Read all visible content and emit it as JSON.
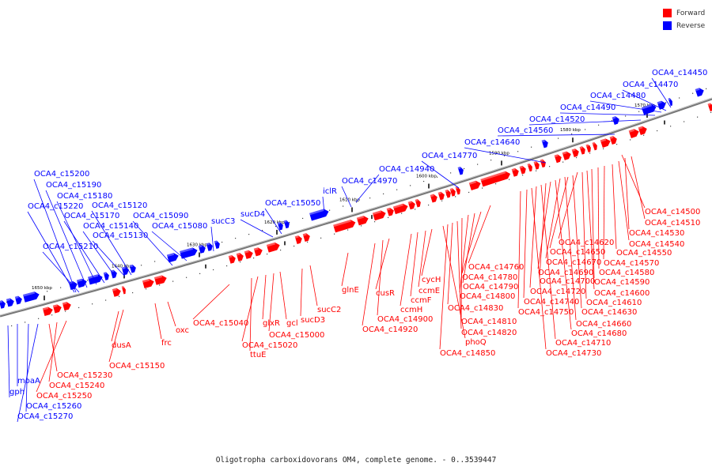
{
  "legend": [
    {
      "label": "Forward",
      "color": "#ff0000"
    },
    {
      "label": "Reverse",
      "color": "#0000ff"
    }
  ],
  "caption": "Oligotropha carboxidovorans OM4, complete genome. - 0..3539447",
  "colors": {
    "forward": "#ff0000",
    "reverse": "#0000ff",
    "axis": "#777777"
  },
  "scale_labels": [
    "1650 kbp",
    "1640 kbp",
    "1630 kbp",
    "1620 kbp",
    "1610 kbp",
    "1600 kbp",
    "1590 kbp",
    "1580 kbp",
    "1570 kbp"
  ],
  "reverse_labels": [
    "OCA4_c14450",
    "OCA4_c14470",
    "OCA4_c14480",
    "OCA4_c14490",
    "OCA4_c14520",
    "OCA4_c14560",
    "OCA4_c14640",
    "OCA4_c14770",
    "OCA4_c14940",
    "OCA4_c14970",
    "iclR",
    "sucD4",
    "OCA4_c15050",
    "sucC3",
    "OCA4_c15080",
    "OCA4_c15090",
    "OCA4_c15120",
    "OCA4_c15130",
    "OCA4_c15140",
    "OCA4_c15170",
    "OCA4_c15180",
    "OCA4_c15190",
    "OCA4_c15200",
    "OCA4_c15210",
    "OCA4_c15220",
    "gph",
    "moaA",
    "OCA4_c15260",
    "OCA4_c15270"
  ],
  "forward_labels": [
    "OCA4_c14500",
    "OCA4_c14510",
    "OCA4_c14530",
    "OCA4_c14540",
    "OCA4_c14550",
    "OCA4_c14570",
    "OCA4_c14580",
    "OCA4_c14590",
    "OCA4_c14600",
    "OCA4_c14610",
    "OCA4_c14620",
    "OCA4_c14630",
    "OCA4_c14650",
    "OCA4_c14660",
    "OCA4_c14670",
    "OCA4_c14680",
    "OCA4_c14690",
    "OCA4_c14700",
    "OCA4_c14710",
    "OCA4_c14720",
    "OCA4_c14730",
    "OCA4_c14740",
    "OCA4_c14750",
    "OCA4_c14760",
    "OCA4_c14780",
    "OCA4_c14790",
    "OCA4_c14800",
    "OCA4_c14810",
    "OCA4_c14820",
    "OCA4_c14830",
    "OCA4_c14850",
    "phoQ",
    "cycH",
    "ccmE",
    "ccmF",
    "ccmH",
    "cusR",
    "OCA4_c14900",
    "OCA4_c14920",
    "glnE",
    "sucC2",
    "sucD3",
    "gcl",
    "OCA4_c15000",
    "glxR",
    "OCA4_c15020",
    "ttuE",
    "OCA4_c15040",
    "oxc",
    "frc",
    "dusA",
    "OCA4_c15150",
    "OCA4_c15230",
    "OCA4_c15240",
    "OCA4_c15250"
  ]
}
